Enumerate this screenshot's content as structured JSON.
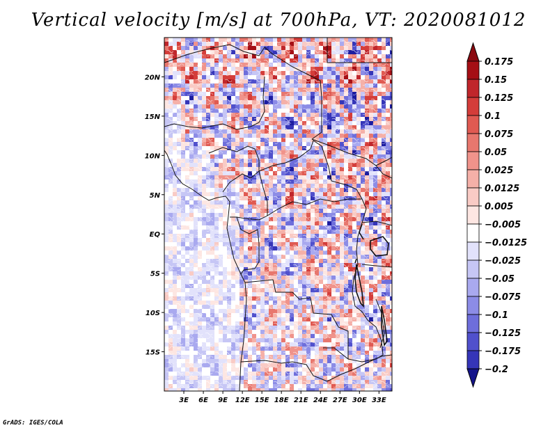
{
  "title": "Vertical velocity [m/s] at 700hPa, VT: 2020081012",
  "credit": "GrADS: IGES/COLA",
  "map": {
    "lon_range": [
      0,
      35
    ],
    "lat_range": [
      -20,
      25
    ],
    "lat_ticks": [
      {
        "value": 20,
        "label": "20N"
      },
      {
        "value": 15,
        "label": "15N"
      },
      {
        "value": 10,
        "label": "10N"
      },
      {
        "value": 5,
        "label": "5N"
      },
      {
        "value": 0,
        "label": "EQ"
      },
      {
        "value": -5,
        "label": "5S"
      },
      {
        "value": -10,
        "label": "10S"
      },
      {
        "value": -15,
        "label": "15S"
      }
    ],
    "lon_ticks": [
      {
        "value": 3,
        "label": "3E"
      },
      {
        "value": 6,
        "label": "6E"
      },
      {
        "value": 9,
        "label": "9E"
      },
      {
        "value": 12,
        "label": "12E"
      },
      {
        "value": 15,
        "label": "15E"
      },
      {
        "value": 18,
        "label": "18E"
      },
      {
        "value": 21,
        "label": "21E"
      },
      {
        "value": 24,
        "label": "24E"
      },
      {
        "value": 27,
        "label": "27E"
      },
      {
        "value": 30,
        "label": "30E"
      },
      {
        "value": 33,
        "label": "33E"
      }
    ]
  },
  "colorbar": {
    "levels": [
      {
        "label": "0.175",
        "color": "#a50f15"
      },
      {
        "label": "0.15",
        "color": "#c0262b"
      },
      {
        "label": "0.125",
        "color": "#d43d3a"
      },
      {
        "label": "0.1",
        "color": "#e05a52"
      },
      {
        "label": "0.075",
        "color": "#e8776e"
      },
      {
        "label": "0.05",
        "color": "#f0938b"
      },
      {
        "label": "0.025",
        "color": "#f5b0a8"
      },
      {
        "label": "0.0125",
        "color": "#f9cbc5"
      },
      {
        "label": "0.005",
        "color": "#fde6e2"
      },
      {
        "label": "−0.005",
        "color": "#ffffff"
      },
      {
        "label": "−0.0125",
        "color": "#e2e2fb"
      },
      {
        "label": "−0.025",
        "color": "#c6c6f5"
      },
      {
        "label": "−0.05",
        "color": "#a9a9ef"
      },
      {
        "label": "−0.075",
        "color": "#8c8ce6"
      },
      {
        "label": "−0.1",
        "color": "#6e6edb"
      },
      {
        "label": "−0.125",
        "color": "#5050cc"
      },
      {
        "label": "−0.175",
        "color": "#3535b8"
      },
      {
        "label": "−0.2",
        "color": "#1c1ca0"
      }
    ],
    "top_color": "#8b0a10",
    "bottom_color": "#14148a"
  }
}
